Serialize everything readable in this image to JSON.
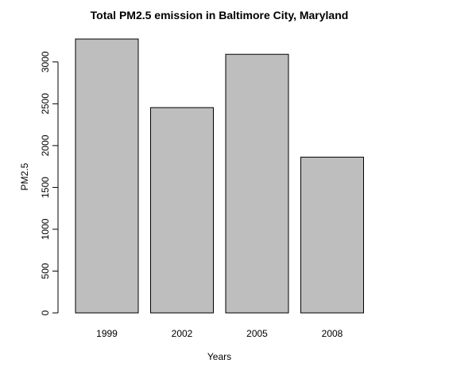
{
  "chart_data": {
    "type": "bar",
    "title": "Total PM2.5 emission in Baltimore City, Maryland",
    "xlabel": "Years",
    "ylabel": "PM2.5",
    "categories": [
      "1999",
      "2002",
      "2005",
      "2008"
    ],
    "values": [
      3274,
      2454,
      3091,
      1862
    ],
    "ylim": [
      0,
      3274
    ],
    "yticks": [
      0,
      500,
      1000,
      1500,
      2000,
      2500,
      3000
    ],
    "grid": false,
    "legend": "none",
    "bar_color": "#bebebe",
    "border_color": "#000000"
  }
}
